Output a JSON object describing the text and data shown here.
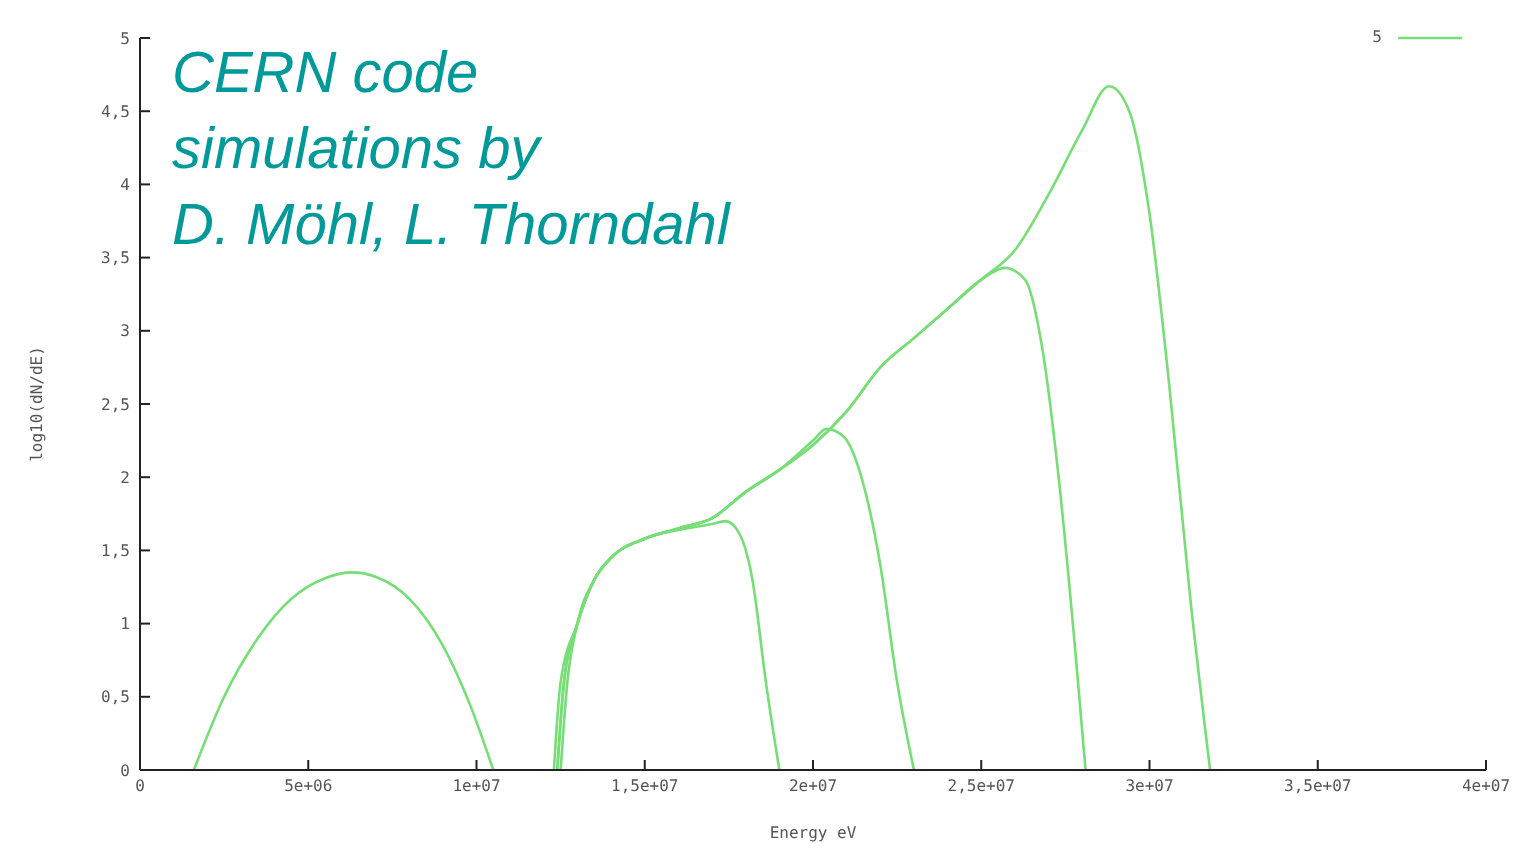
{
  "chart_data": {
    "type": "line",
    "xlabel": "Energy eV",
    "ylabel": "log10(dN/dE)",
    "annotations": [
      "CERN code\nsimulations by\nD. Möhl, L. Thorndahl"
    ],
    "xlim": [
      0,
      40000000
    ],
    "ylim": [
      0,
      5
    ],
    "xticks": [
      0,
      {
        "value": 5000000,
        "label": "5e+06"
      },
      {
        "value": 10000000,
        "label": "1e+07"
      },
      {
        "value": 15000000,
        "label": "1,5e+07"
      },
      {
        "value": 20000000,
        "label": "2e+07"
      },
      {
        "value": 25000000,
        "label": "2,5e+07"
      },
      {
        "value": 30000000,
        "label": "3e+07"
      },
      {
        "value": 35000000,
        "label": "3,5e+07"
      },
      {
        "value": 40000000,
        "label": "4e+07"
      }
    ],
    "yticks": [
      0,
      {
        "value": 0.5,
        "label": "0,5"
      },
      1,
      {
        "value": 1.5,
        "label": "1,5"
      },
      2,
      {
        "value": 2.5,
        "label": "2,5"
      },
      3,
      {
        "value": 3.5,
        "label": "3,5"
      },
      4,
      {
        "value": 4.5,
        "label": "4,5"
      },
      5
    ],
    "legend": "top right",
    "marker": "none",
    "line_style": "solid",
    "series": [
      {
        "name": "5",
        "color": "#77dd77",
        "x": [
          1600000,
          2500000,
          3500000,
          4500000,
          5500000,
          6300000,
          7000000,
          8000000,
          9000000,
          9800000,
          10500000
        ],
        "values": [
          0,
          0.5,
          0.9,
          1.17,
          1.31,
          1.35,
          1.32,
          1.17,
          0.85,
          0.45,
          0
        ]
      },
      {
        "color": "#77dd77",
        "x": [
          12500000,
          12700000,
          13000000,
          13500000,
          14000000,
          15000000,
          16000000,
          17000000,
          17400000,
          17800000,
          18200000,
          18600000,
          19000000
        ],
        "values": [
          0,
          0.6,
          1.0,
          1.3,
          1.45,
          1.58,
          1.64,
          1.68,
          1.7,
          1.62,
          1.3,
          0.6,
          0
        ]
      },
      {
        "color": "#77dd77",
        "x": [
          12400000,
          12600000,
          13000000,
          13500000,
          14000000,
          15000000,
          16000000,
          17000000,
          18000000,
          19000000,
          20000000,
          20400000,
          20900000,
          21500000,
          22000000,
          22500000,
          23000000
        ],
        "values": [
          0,
          0.6,
          1.0,
          1.3,
          1.45,
          1.58,
          1.65,
          1.72,
          1.9,
          2.05,
          2.25,
          2.33,
          2.28,
          1.95,
          1.4,
          0.6,
          0
        ]
      },
      {
        "color": "#77dd77",
        "x": [
          12300000,
          12500000,
          13000000,
          13500000,
          14000000,
          15000000,
          16000000,
          17000000,
          18000000,
          19000000,
          20000000,
          21000000,
          22000000,
          23000000,
          24000000,
          25000000,
          25700000,
          26300000,
          26800000,
          27300000,
          27800000,
          28100000
        ],
        "values": [
          0,
          0.6,
          1.0,
          1.3,
          1.45,
          1.58,
          1.65,
          1.72,
          1.9,
          2.05,
          2.22,
          2.45,
          2.75,
          2.95,
          3.15,
          3.35,
          3.43,
          3.35,
          2.9,
          2.0,
          0.8,
          0
        ]
      },
      {
        "color": "#77dd77",
        "x": [
          12400000,
          12600000,
          13000000,
          13500000,
          14000000,
          15000000,
          16000000,
          17000000,
          18000000,
          19000000,
          20000000,
          21000000,
          22000000,
          23000000,
          24000000,
          25000000,
          26000000,
          27000000,
          28000000,
          28800000,
          29400000,
          30000000,
          30600000,
          31200000,
          31800000
        ],
        "values": [
          0,
          0.6,
          1.0,
          1.3,
          1.45,
          1.58,
          1.65,
          1.72,
          1.9,
          2.05,
          2.22,
          2.45,
          2.75,
          2.95,
          3.15,
          3.35,
          3.55,
          3.93,
          4.37,
          4.67,
          4.5,
          3.8,
          2.6,
          1.2,
          0
        ]
      }
    ]
  }
}
